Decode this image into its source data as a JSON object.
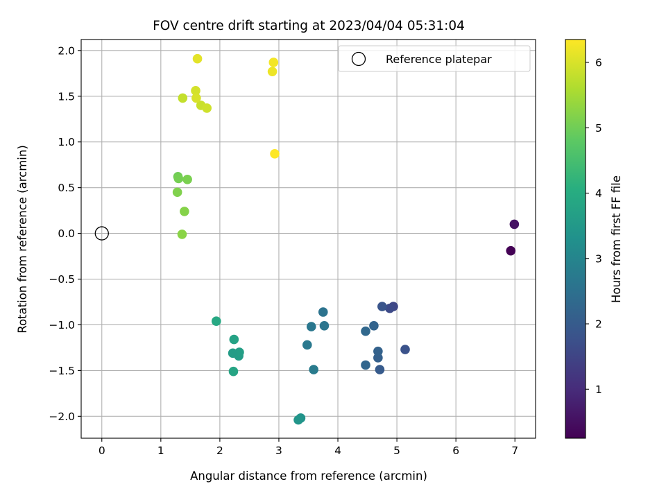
{
  "chart_data": {
    "type": "scatter",
    "title": "FOV centre drift starting at 2023/04/04 05:31:04",
    "xlabel": "Angular distance from reference (arcmin)",
    "ylabel": "Rotation from reference (arcmin)",
    "xlim": [
      -0.35,
      7.35
    ],
    "ylim": [
      -2.24,
      2.12
    ],
    "xticks": [
      0,
      1,
      2,
      3,
      4,
      5,
      6,
      7
    ],
    "xtick_labels": [
      "0",
      "1",
      "2",
      "3",
      "4",
      "5",
      "6",
      "7"
    ],
    "yticks": [
      2.0,
      1.5,
      1.0,
      0.5,
      0.0,
      -0.5,
      -1.0,
      -1.5,
      -2.0
    ],
    "ytick_labels": [
      "2.0",
      "1.5",
      "1.0",
      "0.5",
      "0.0",
      "−0.5",
      "−1.0",
      "−1.5",
      "−2.0"
    ],
    "grid": true,
    "legend_position": "top-right",
    "reference": {
      "label": "Reference platepar",
      "x": 0,
      "y": 0,
      "marker": "open circle"
    },
    "colorbar": {
      "label": "Hours from first FF file",
      "colormap": "viridis",
      "range": [
        0.25,
        6.35
      ],
      "ticks": [
        1,
        2,
        3,
        4,
        5,
        6
      ],
      "tick_labels": [
        "1",
        "2",
        "3",
        "4",
        "5",
        "6"
      ]
    },
    "points": [
      {
        "x": 6.93,
        "y": -0.19,
        "c": 0.27
      },
      {
        "x": 6.99,
        "y": 0.1,
        "c": 0.55
      },
      {
        "x": 4.94,
        "y": -0.8,
        "c": 1.55
      },
      {
        "x": 4.88,
        "y": -0.82,
        "c": 1.62
      },
      {
        "x": 4.75,
        "y": -0.8,
        "c": 1.85
      },
      {
        "x": 5.14,
        "y": -1.27,
        "c": 1.8
      },
      {
        "x": 4.71,
        "y": -1.49,
        "c": 2.0
      },
      {
        "x": 4.68,
        "y": -1.36,
        "c": 2.1
      },
      {
        "x": 4.68,
        "y": -1.29,
        "c": 2.15
      },
      {
        "x": 4.61,
        "y": -1.01,
        "c": 2.2
      },
      {
        "x": 4.47,
        "y": -1.07,
        "c": 2.3
      },
      {
        "x": 4.47,
        "y": -1.44,
        "c": 2.25
      },
      {
        "x": 3.75,
        "y": -0.86,
        "c": 2.55
      },
      {
        "x": 3.77,
        "y": -1.01,
        "c": 2.6
      },
      {
        "x": 3.55,
        "y": -1.02,
        "c": 2.65
      },
      {
        "x": 3.48,
        "y": -1.22,
        "c": 2.7
      },
      {
        "x": 3.59,
        "y": -1.49,
        "c": 2.75
      },
      {
        "x": 3.37,
        "y": -2.02,
        "c": 3.35
      },
      {
        "x": 3.33,
        "y": -2.04,
        "c": 3.4
      },
      {
        "x": 2.3,
        "y": -1.32,
        "c": 3.55
      },
      {
        "x": 2.32,
        "y": -1.34,
        "c": 3.6
      },
      {
        "x": 2.33,
        "y": -1.3,
        "c": 3.65
      },
      {
        "x": 2.22,
        "y": -1.31,
        "c": 3.6
      },
      {
        "x": 2.24,
        "y": -1.16,
        "c": 3.75
      },
      {
        "x": 2.23,
        "y": -1.51,
        "c": 3.8
      },
      {
        "x": 1.94,
        "y": -0.96,
        "c": 3.9
      },
      {
        "x": 1.29,
        "y": 0.62,
        "c": 5.0
      },
      {
        "x": 1.3,
        "y": 0.6,
        "c": 5.05
      },
      {
        "x": 1.45,
        "y": 0.59,
        "c": 5.1
      },
      {
        "x": 1.28,
        "y": 0.45,
        "c": 5.15
      },
      {
        "x": 1.4,
        "y": 0.24,
        "c": 5.2
      },
      {
        "x": 1.36,
        "y": -0.01,
        "c": 5.25
      },
      {
        "x": 1.37,
        "y": 1.48,
        "c": 5.8
      },
      {
        "x": 1.68,
        "y": 1.4,
        "c": 5.85
      },
      {
        "x": 1.78,
        "y": 1.37,
        "c": 5.9
      },
      {
        "x": 1.59,
        "y": 1.56,
        "c": 5.95
      },
      {
        "x": 1.6,
        "y": 1.48,
        "c": 6.0
      },
      {
        "x": 1.62,
        "y": 1.91,
        "c": 6.1
      },
      {
        "x": 2.89,
        "y": 1.77,
        "c": 6.2
      },
      {
        "x": 2.91,
        "y": 1.87,
        "c": 6.25
      },
      {
        "x": 2.93,
        "y": 0.87,
        "c": 6.35
      }
    ]
  }
}
